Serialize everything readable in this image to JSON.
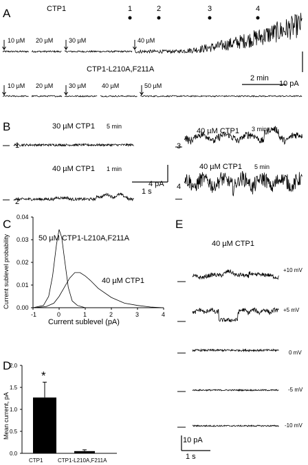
{
  "panelA": {
    "letter": "A",
    "trace1_title": "CTP1",
    "trace2_title": "CTP1-L210A,F211A",
    "time_points": [
      "1",
      "2",
      "3",
      "4"
    ],
    "trace1_conc": [
      "10 µM",
      "20 µM",
      "30 µM",
      "40 µM"
    ],
    "trace2_conc": [
      "10 µM",
      "20 µM",
      "30 µM",
      "40 µM",
      "50 µM"
    ],
    "scale_y": "10 pA",
    "scale_x": "2 min"
  },
  "panelB": {
    "letter": "B",
    "traces": [
      {
        "num": "1",
        "label": "30 µM CTP1",
        "time": "5 min"
      },
      {
        "num": "2",
        "label": "40 µM CTP1",
        "time": "1 min"
      },
      {
        "num": "3",
        "label": "40 µM CTP1",
        "time": "3 min"
      },
      {
        "num": "4",
        "label": "40 µM CTP1",
        "time": "5 min"
      }
    ],
    "scale_y": "4 pA",
    "scale_x": "1 s"
  },
  "panelE": {
    "letter": "E",
    "title": "40 µM CTP1",
    "voltages": [
      "+10 mV",
      "+5 mV",
      "0 mV",
      "-5 mV",
      "-10 mV"
    ],
    "scale_y": "10 pA",
    "scale_x": "1 s"
  },
  "chart_data": [
    {
      "type": "line",
      "panel": "C",
      "xlabel": "Current sublevel   (pA)",
      "ylabel": "Current sublevel probability",
      "xlim": [
        -1,
        4
      ],
      "ylim": [
        0,
        0.04
      ],
      "xticks": [
        "-1",
        "0",
        "1",
        "2",
        "3",
        "4"
      ],
      "yticks": [
        "0.00",
        "0.01",
        "0.02",
        "0.03",
        "0.04"
      ],
      "series": [
        {
          "name": "50 µM CTP1-L210A,F211A",
          "x": [
            -1.0,
            -0.6,
            -0.4,
            -0.25,
            -0.1,
            0.0,
            0.1,
            0.2,
            0.35,
            0.5,
            0.7,
            1.0,
            1.5,
            2.0
          ],
          "y": [
            0.0,
            0.001,
            0.005,
            0.014,
            0.028,
            0.0345,
            0.031,
            0.022,
            0.009,
            0.003,
            0.001,
            0.0,
            0.0,
            0.0
          ]
        },
        {
          "name": "40 µM CTP1",
          "x": [
            -1.0,
            -0.5,
            -0.2,
            0.0,
            0.2,
            0.4,
            0.6,
            0.8,
            1.0,
            1.2,
            1.5,
            2.0,
            2.5,
            3.0,
            3.5,
            4.0
          ],
          "y": [
            0.0,
            0.0005,
            0.002,
            0.005,
            0.009,
            0.013,
            0.0155,
            0.0155,
            0.014,
            0.012,
            0.0085,
            0.0045,
            0.002,
            0.001,
            0.0003,
            0.0
          ]
        }
      ]
    },
    {
      "type": "bar",
      "panel": "D",
      "categories": [
        "CTP1",
        "CTP1-L210A,F211A"
      ],
      "values": [
        1.27,
        0.05
      ],
      "errors": [
        0.35,
        0.03
      ],
      "ylabel": "Mean current,  pA",
      "ylim": [
        0,
        2.0
      ],
      "yticks": [
        "0.0",
        "0.5",
        "1.0",
        "1.5",
        "2.0"
      ],
      "annotation": "*"
    }
  ],
  "labels": {
    "C": "C",
    "D": "D"
  }
}
